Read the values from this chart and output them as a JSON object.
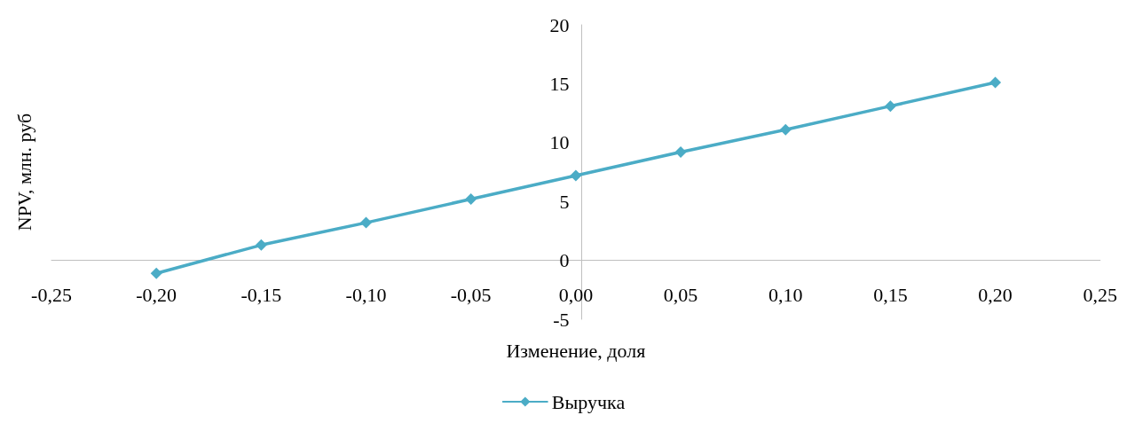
{
  "chart_data": {
    "type": "line",
    "xlabel": "Изменение, доля",
    "ylabel": "NPV, млн. руб",
    "x": [
      -0.2,
      -0.15,
      -0.1,
      -0.05,
      0,
      0.05,
      0.1,
      0.15,
      0.2
    ],
    "series": [
      {
        "name": "Выручка",
        "color": "#4bacc6",
        "values": [
          -1.1,
          1.3,
          3.2,
          5.2,
          7.2,
          9.2,
          11.1,
          13.1,
          15.1
        ]
      }
    ],
    "xlim": [
      -0.25,
      0.25
    ],
    "xticks": [
      {
        "value": -0.25,
        "label": "-0,25"
      },
      {
        "value": -0.2,
        "label": "-0,20"
      },
      {
        "value": -0.15,
        "label": "-0,15"
      },
      {
        "value": -0.1,
        "label": "-0,10"
      },
      {
        "value": -0.05,
        "label": "-0,05"
      },
      {
        "value": 0,
        "label": "0,00"
      },
      {
        "value": 0.05,
        "label": "0,05"
      },
      {
        "value": 0.1,
        "label": "0,10"
      },
      {
        "value": 0.15,
        "label": "0,15"
      },
      {
        "value": 0.2,
        "label": "0,20"
      },
      {
        "value": 0.25,
        "label": "0,25"
      }
    ],
    "ylim": [
      -5,
      20
    ],
    "yticks": [
      -5,
      0,
      5,
      10,
      15,
      20
    ],
    "grid": false,
    "legend": "bottom",
    "marker": "diamond",
    "line_style": "solid"
  }
}
